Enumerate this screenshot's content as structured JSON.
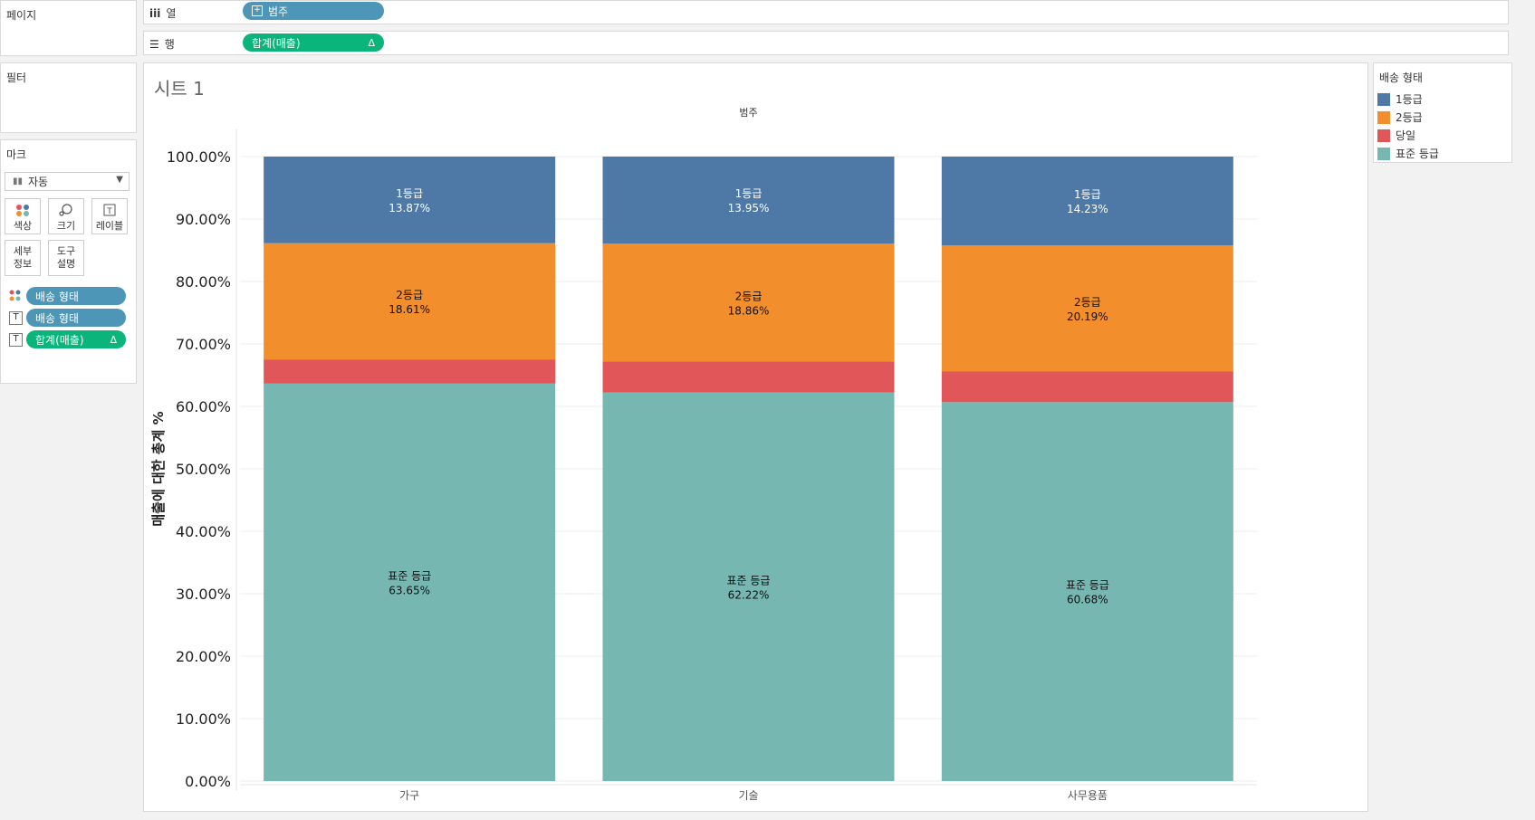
{
  "left_panel": {
    "pages_title": "페이지",
    "filters_title": "필터",
    "marks_title": "마크",
    "mark_type": "자동",
    "mark_buttons": [
      {
        "label": "색상",
        "icon": "color-dots-icon"
      },
      {
        "label": "크기",
        "icon": "size-icon"
      },
      {
        "label": "레이블",
        "icon": "label-icon"
      }
    ],
    "mark_buttons_row2": [
      {
        "label1": "세부",
        "label2": "정보",
        "icon": "detail-icon"
      },
      {
        "label1": "도구",
        "label2": "설명",
        "icon": "tooltip-icon"
      }
    ],
    "mark_fields": [
      {
        "label": "배송 형태",
        "icon": "color-dots-icon"
      },
      {
        "label": "배송 형태",
        "icon": "label-icon"
      },
      {
        "label": "합계(매출)",
        "icon": "label-icon",
        "delta": "Δ"
      }
    ]
  },
  "shelves": {
    "columns_label": "열",
    "columns_pill": "범주",
    "rows_label": "행",
    "rows_pill": "합계(매출)",
    "rows_delta": "Δ"
  },
  "sheet": {
    "title": "시트 1"
  },
  "legend": {
    "title": "배송 형태",
    "items": [
      {
        "label": "1등급",
        "color": "#4e79a7"
      },
      {
        "label": "2등급",
        "color": "#f28e2b"
      },
      {
        "label": "당일",
        "color": "#e15759"
      },
      {
        "label": "표준 등급",
        "color": "#76b7b2"
      }
    ]
  },
  "chart_data": {
    "type": "bar",
    "stacked": true,
    "header": "범주",
    "ylabel": "매출에 대한 총계 %",
    "ylim": [
      0,
      100
    ],
    "yticks": [
      "0.00%",
      "10.00%",
      "20.00%",
      "30.00%",
      "40.00%",
      "50.00%",
      "60.00%",
      "70.00%",
      "80.00%",
      "90.00%",
      "100.00%"
    ],
    "categories": [
      "가구",
      "기술",
      "사무용품"
    ],
    "series": [
      {
        "name": "표준 등급",
        "color": "#76b7b2",
        "values": [
          63.65,
          62.22,
          60.68
        ],
        "labels": [
          "63.65%",
          "62.22%",
          "60.68%"
        ],
        "show_label": true
      },
      {
        "name": "당일",
        "color": "#e15759",
        "values": [
          3.87,
          4.97,
          4.9
        ],
        "labels": [
          "",
          "",
          ""
        ],
        "show_label": false
      },
      {
        "name": "2등급",
        "color": "#f28e2b",
        "values": [
          18.61,
          18.86,
          20.19
        ],
        "labels": [
          "18.61%",
          "18.86%",
          "20.19%"
        ],
        "show_label": true
      },
      {
        "name": "1등급",
        "color": "#4e79a7",
        "values": [
          13.87,
          13.95,
          14.23
        ],
        "labels": [
          "13.87%",
          "13.95%",
          "14.23%"
        ],
        "show_label": true
      }
    ]
  }
}
